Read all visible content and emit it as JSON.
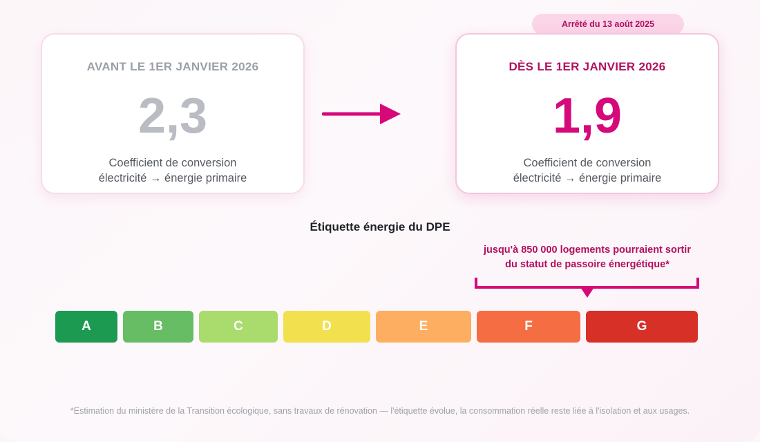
{
  "badge": {
    "label": "Arrêté du 13 août 2025"
  },
  "before": {
    "title": "AVANT LE 1ER JANVIER 2026",
    "value": "2,3",
    "caption_line1": "Coefficient de conversion",
    "caption_line2": "électricité → énergie primaire"
  },
  "after": {
    "title": "DÈS LE 1ER JANVIER 2026",
    "value": "1,9",
    "caption_line1": "Coefficient de conversion",
    "caption_line2": "électricité → énergie primaire"
  },
  "dpe": {
    "title": "Étiquette énergie du DPE",
    "callout_line1": "jusqu'à 850 000 logements pourraient sortir",
    "callout_line2": "du statut de passoire énergétique*",
    "classes": [
      {
        "label": "A",
        "color": "#1c9a52"
      },
      {
        "label": "B",
        "color": "#66bd63"
      },
      {
        "label": "C",
        "color": "#a9dc6c"
      },
      {
        "label": "D",
        "color": "#f2e04e"
      },
      {
        "label": "E",
        "color": "#fdae61"
      },
      {
        "label": "F",
        "color": "#f46d43"
      },
      {
        "label": "G",
        "color": "#d73027"
      }
    ]
  },
  "colors": {
    "accent": "#d6097a",
    "accent_dark": "#b1105f",
    "muted": "#b9bcc2"
  },
  "footnote": "*Estimation du ministère de la Transition écologique, sans travaux de rénovation — l'étiquette évolue, la consommation réelle reste liée à l'isolation et aux usages."
}
